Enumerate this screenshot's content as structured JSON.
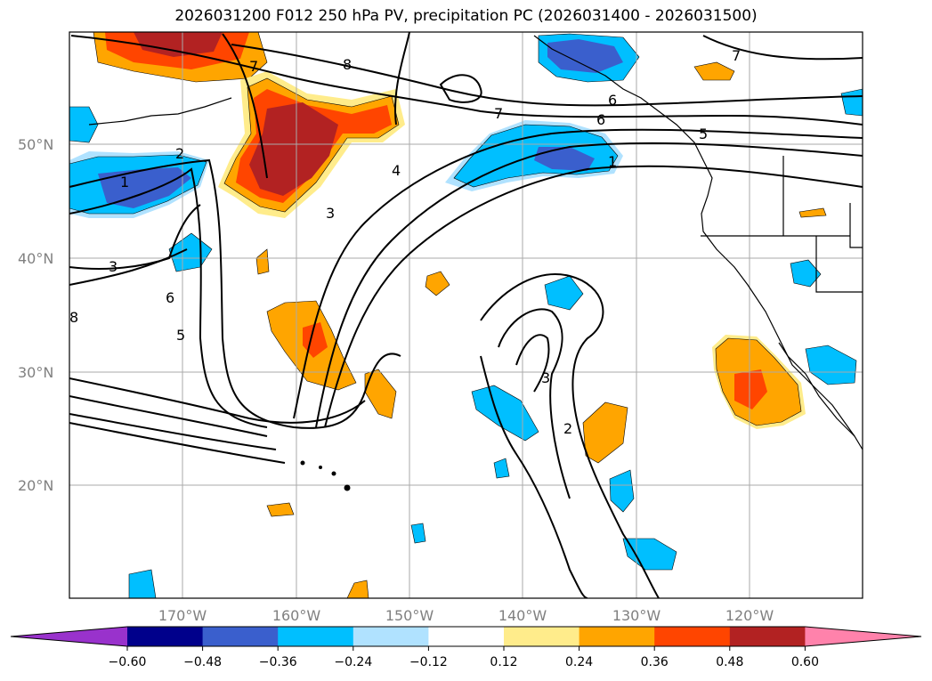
{
  "title": "2026031200 F012 250 hPa PV, precipitation PC (2026031400 - 2026031500)",
  "map": {
    "lat_ticks": [
      "50°N",
      "40°N",
      "30°N",
      "20°N"
    ],
    "lon_ticks": [
      "170°W",
      "160°W",
      "150°W",
      "140°W",
      "130°W",
      "120°W"
    ],
    "contour_labels": [
      "7",
      "8",
      "7",
      "6",
      "5",
      "1",
      "2",
      "1",
      "4",
      "3",
      "3",
      "5",
      "6",
      "8",
      "3",
      "2",
      "7",
      "6"
    ]
  },
  "colorbar": {
    "ticks": [
      "−0.60",
      "−0.48",
      "−0.36",
      "−0.24",
      "−0.12",
      "0.12",
      "0.24",
      "0.36",
      "0.48",
      "0.60"
    ],
    "colors": [
      "#9932cc",
      "#00008b",
      "#3a5fcd",
      "#00bfff",
      "#b0e2ff",
      "#ffffff",
      "#ffec8b",
      "#ffa500",
      "#ff4500",
      "#b22222",
      "#ff82ab"
    ]
  }
}
